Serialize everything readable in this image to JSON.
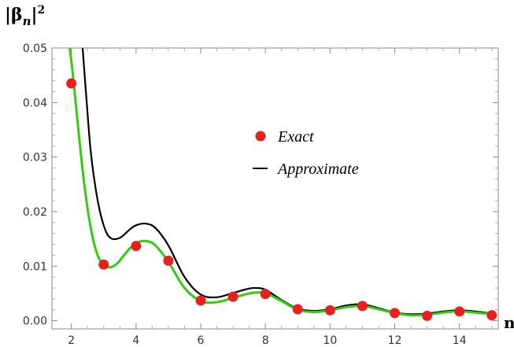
{
  "chart_data": {
    "type": "scatter",
    "ylabel": "|βn|2",
    "xlabel": "n",
    "ylabel_base": "|β",
    "ylabel_sub": "n",
    "ylabel_close": "|",
    "ylabel_sup": "2",
    "xlim": [
      1.4,
      15.2
    ],
    "ylim": [
      -0.0015,
      0.05
    ],
    "x_ticks": [
      2,
      4,
      6,
      8,
      10,
      12,
      14
    ],
    "x_tick_labels": [
      "2",
      "4",
      "6",
      "8",
      "10",
      "12",
      "14"
    ],
    "y_ticks": [
      0.0,
      0.01,
      0.02,
      0.03,
      0.04,
      0.05
    ],
    "y_tick_labels": [
      "0.00",
      "0.01",
      "0.02",
      "0.03",
      "0.04",
      "0.05"
    ],
    "legend": {
      "placement": "center-right",
      "entries": [
        {
          "label": "Exact",
          "marker": "circle",
          "color": "#e8201e"
        },
        {
          "label": "Approximate",
          "marker": "line",
          "color": "#000000"
        }
      ]
    },
    "series": [
      {
        "name": "Exact",
        "kind": "points",
        "color": "#e8201e",
        "x": [
          2,
          3,
          4,
          5,
          6,
          7,
          8,
          9,
          10,
          11,
          12,
          13,
          14,
          15
        ],
        "y": [
          0.0435,
          0.0103,
          0.0137,
          0.011,
          0.0037,
          0.0044,
          0.0049,
          0.0021,
          0.0019,
          0.0027,
          0.0014,
          0.0009,
          0.0017,
          0.001
        ]
      },
      {
        "name": "Approximate",
        "kind": "line",
        "color": "#000000",
        "x": [
          2.35,
          2.45,
          2.6,
          2.8,
          3.0,
          3.2,
          3.5,
          3.8,
          4.0,
          4.3,
          4.6,
          5.0,
          5.5,
          6.0,
          6.5,
          7.0,
          7.5,
          7.7,
          8.0,
          8.5,
          9.0,
          9.5,
          10.0,
          10.5,
          11.0,
          11.5,
          12.0,
          12.5,
          13.0,
          13.5,
          14.0,
          14.5,
          15.0
        ],
        "y": [
          0.05,
          0.042,
          0.031,
          0.0225,
          0.0175,
          0.0152,
          0.0152,
          0.0167,
          0.0175,
          0.0178,
          0.017,
          0.0138,
          0.008,
          0.0048,
          0.0043,
          0.0051,
          0.0059,
          0.006,
          0.0057,
          0.0038,
          0.0022,
          0.0018,
          0.0021,
          0.0028,
          0.003,
          0.0023,
          0.0015,
          0.0012,
          0.0013,
          0.0017,
          0.0019,
          0.0017,
          0.0013
        ]
      },
      {
        "kind": "line",
        "color": "#33cc11",
        "x": [
          1.95,
          2.05,
          2.2,
          2.4,
          2.6,
          2.8,
          3.0,
          3.2,
          3.4,
          3.6,
          3.8,
          4.0,
          4.2,
          4.4,
          4.6,
          5.0,
          5.5,
          6.0,
          6.5,
          7.0,
          7.5,
          7.8,
          8.0,
          8.5,
          9.0,
          9.5,
          10.0,
          10.5,
          11.0,
          11.5,
          12.0,
          12.5,
          13.0,
          13.5,
          14.0,
          14.5,
          15.0
        ],
        "y": [
          0.05,
          0.045,
          0.036,
          0.025,
          0.017,
          0.0122,
          0.0102,
          0.0098,
          0.0104,
          0.0118,
          0.0132,
          0.0142,
          0.0146,
          0.0145,
          0.0138,
          0.0108,
          0.006,
          0.0036,
          0.0034,
          0.0042,
          0.005,
          0.0052,
          0.0051,
          0.0036,
          0.002,
          0.0016,
          0.0019,
          0.0025,
          0.0027,
          0.0021,
          0.0014,
          0.001,
          0.0011,
          0.0015,
          0.0017,
          0.0015,
          0.0012
        ]
      }
    ]
  }
}
